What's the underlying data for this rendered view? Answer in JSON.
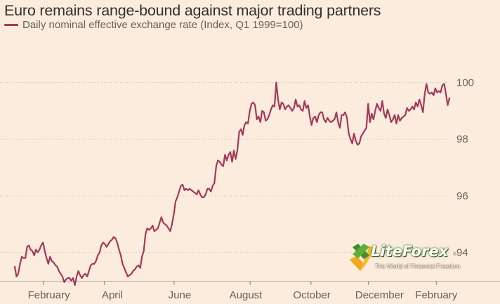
{
  "chart_data": {
    "type": "line",
    "title": "Euro remains range-bound against major trading partners",
    "series": [
      {
        "name": "Daily nominal effective exchange rate (Index, Q1 1999=100)",
        "color": "#a5395a",
        "values": [
          93.5,
          93.15,
          93.25,
          93.6,
          93.85,
          93.8,
          93.8,
          94.2,
          94.25,
          94.1,
          94.05,
          93.9,
          94.1,
          94.0,
          94.1,
          94.25,
          94.35,
          94.05,
          93.8,
          93.6,
          93.85,
          93.7,
          93.65,
          93.55,
          93.5,
          93.35,
          93.25,
          93.15,
          92.95,
          93.05,
          93.1,
          93.1,
          93.0,
          93.1,
          92.85,
          93.15,
          93.35,
          93.2,
          93.1,
          93.2,
          93.25,
          93.15,
          93.35,
          93.55,
          93.6,
          93.6,
          93.7,
          93.9,
          94.0,
          94.25,
          94.35,
          94.3,
          94.2,
          94.3,
          94.4,
          94.45,
          94.55,
          94.5,
          94.35,
          94.1,
          93.9,
          93.6,
          93.45,
          93.3,
          93.15,
          93.2,
          93.25,
          93.35,
          93.4,
          93.5,
          93.55,
          93.45,
          93.85,
          94.05,
          94.65,
          94.85,
          94.8,
          94.85,
          94.95,
          94.75,
          94.8,
          94.85,
          95.05,
          95.25,
          95.05,
          95.0,
          94.95,
          94.85,
          94.75,
          95.0,
          95.35,
          95.8,
          95.95,
          96.15,
          96.35,
          96.4,
          96.2,
          96.25,
          96.2,
          96.25,
          96.2,
          96.15,
          96.1,
          96.05,
          96.2,
          96.05,
          95.95,
          95.95,
          96.05,
          96.25,
          96.25,
          96.15,
          96.35,
          96.45,
          97.05,
          97.25,
          97.2,
          97.1,
          97.05,
          97.45,
          97.25,
          97.45,
          97.55,
          97.2,
          97.6,
          97.3,
          97.6,
          98.25,
          98.35,
          98.15,
          98.5,
          98.6,
          98.55,
          99.0,
          99.25,
          99.3,
          99.2,
          98.7,
          98.8,
          98.6,
          99.0,
          98.95,
          98.65,
          98.7,
          98.85,
          99.05,
          99.2,
          99.15,
          100.0,
          99.4,
          99.05,
          99.3,
          99.25,
          99.05,
          99.15,
          99.2,
          99.1,
          99.0,
          99.1,
          99.4,
          99.15,
          99.2,
          99.05,
          99.0,
          99.35,
          99.1,
          99.2,
          98.8,
          98.5,
          98.75,
          98.8,
          98.6,
          98.85,
          98.95,
          98.95,
          98.7,
          98.6,
          98.75,
          98.65,
          98.6,
          98.65,
          98.7,
          98.95,
          98.6,
          98.4,
          98.85,
          98.85,
          98.95,
          98.75,
          98.2,
          98.0,
          97.85,
          98.2,
          97.95,
          97.8,
          97.85,
          98.1,
          98.2,
          98.3,
          98.4,
          99.25,
          98.6,
          98.9,
          98.7,
          99.0,
          99.25,
          99.1,
          99.0,
          99.35,
          98.9,
          98.75,
          99.05,
          98.85,
          98.6,
          98.7,
          98.85,
          98.55,
          98.85,
          98.65,
          98.75,
          98.8,
          98.85,
          99.1,
          99.0,
          99.05,
          99.15,
          99.05,
          99.3,
          99.15,
          99.4,
          99.2,
          98.95,
          99.6,
          99.95,
          99.65,
          99.6,
          99.65,
          99.55,
          99.8,
          99.65,
          99.7,
          99.65,
          99.9,
          99.95,
          99.6,
          99.2,
          99.45
        ]
      }
    ],
    "x_ticks": [
      {
        "label": "February",
        "pos": 0.0655
      },
      {
        "label": "April",
        "pos": 0.2065
      },
      {
        "label": "June",
        "pos": 0.3665
      },
      {
        "label": "August",
        "pos": 0.5415
      },
      {
        "label": "October",
        "pos": 0.6815
      },
      {
        "label": "December",
        "pos": 0.8137
      },
      {
        "label": "February",
        "pos": 0.9698
      }
    ],
    "y_ticks": [
      94,
      96,
      98,
      100
    ],
    "ylim": [
      93,
      101.5
    ],
    "grid": true,
    "legend": "top-left, below title"
  },
  "logo": {
    "name": "LiteForex",
    "tagline": "The World of Financial Freedom",
    "reg": "®"
  }
}
